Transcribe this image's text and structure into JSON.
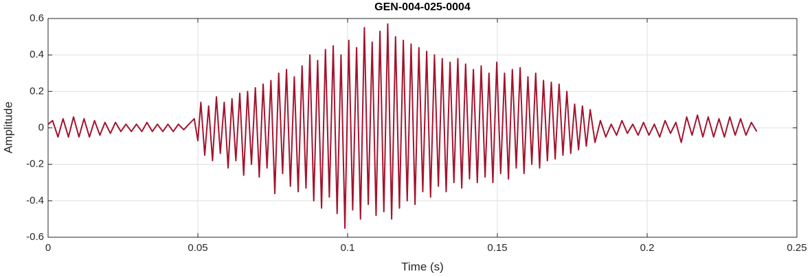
{
  "chart_data": {
    "type": "line",
    "title": "GEN-004-025-0004",
    "x_label": "Time (s)",
    "y_label": "Amplitude",
    "color": "#a2142f",
    "grid": true,
    "xlim": [
      0,
      0.25
    ],
    "ylim": [
      -0.6,
      0.6
    ],
    "xticks": [
      0,
      0.05,
      0.1,
      0.15,
      0.2,
      0.25
    ],
    "yticks": [
      -0.6,
      -0.4,
      -0.2,
      0,
      0.2,
      0.4,
      0.6
    ],
    "x": [
      0,
      0.0015,
      0.0033,
      0.005,
      0.0068,
      0.0085,
      0.0103,
      0.012,
      0.0138,
      0.0155,
      0.0173,
      0.019,
      0.0208,
      0.0225,
      0.0243,
      0.026,
      0.0278,
      0.0295,
      0.0313,
      0.033,
      0.0348,
      0.0365,
      0.0383,
      0.04,
      0.0418,
      0.0435,
      0.0453,
      0.047,
      0.0488,
      0.05,
      0.051,
      0.0523,
      0.0536,
      0.0549,
      0.0562,
      0.0575,
      0.0588,
      0.0601,
      0.0614,
      0.0627,
      0.064,
      0.0653,
      0.0666,
      0.0679,
      0.0692,
      0.0705,
      0.0718,
      0.0731,
      0.0744,
      0.0757,
      0.077,
      0.0783,
      0.0796,
      0.0809,
      0.0822,
      0.0835,
      0.0848,
      0.0861,
      0.0874,
      0.0887,
      0.09,
      0.0913,
      0.0926,
      0.0939,
      0.0952,
      0.0965,
      0.0978,
      0.0991,
      0.1004,
      0.1017,
      0.103,
      0.1043,
      0.1056,
      0.1069,
      0.1082,
      0.1095,
      0.1108,
      0.1121,
      0.1134,
      0.1147,
      0.116,
      0.1173,
      0.1186,
      0.1199,
      0.1212,
      0.1225,
      0.1238,
      0.1251,
      0.1264,
      0.1277,
      0.129,
      0.1303,
      0.1316,
      0.1329,
      0.1342,
      0.1355,
      0.1368,
      0.1381,
      0.1394,
      0.1407,
      0.142,
      0.1433,
      0.1446,
      0.1459,
      0.1472,
      0.1485,
      0.1498,
      0.1511,
      0.1524,
      0.1537,
      0.155,
      0.1563,
      0.1576,
      0.1589,
      0.1602,
      0.1615,
      0.1628,
      0.1641,
      0.1654,
      0.1667,
      0.168,
      0.1693,
      0.1706,
      0.1719,
      0.1732,
      0.1745,
      0.1758,
      0.1771,
      0.1784,
      0.1797,
      0.181,
      0.1826,
      0.1844,
      0.1862,
      0.188,
      0.1898,
      0.1916,
      0.1934,
      0.1952,
      0.197,
      0.1988,
      0.2006,
      0.2024,
      0.2042,
      0.206,
      0.2078,
      0.2096,
      0.2114,
      0.2132,
      0.215,
      0.2168,
      0.2186,
      0.2204,
      0.2222,
      0.224,
      0.2258,
      0.2276,
      0.2294,
      0.2312,
      0.233,
      0.2348,
      0.2366
    ],
    "values": [
      0.02,
      0.04,
      -0.05,
      0.05,
      -0.05,
      0.06,
      -0.05,
      0.05,
      -0.05,
      0.04,
      -0.04,
      0.03,
      -0.03,
      0.03,
      -0.02,
      0.02,
      -0.02,
      0.02,
      -0.02,
      0.03,
      -0.02,
      0.02,
      -0.02,
      0.02,
      -0.02,
      0.02,
      -0.01,
      0.02,
      0.05,
      -0.07,
      0.14,
      -0.15,
      0.12,
      -0.18,
      0.17,
      -0.14,
      0.14,
      -0.22,
      0.16,
      -0.18,
      0.19,
      -0.26,
      0.2,
      -0.2,
      0.22,
      -0.27,
      0.24,
      -0.22,
      0.26,
      -0.36,
      0.3,
      -0.25,
      0.32,
      -0.32,
      0.28,
      -0.35,
      0.34,
      -0.33,
      0.4,
      -0.4,
      0.37,
      -0.44,
      0.43,
      -0.38,
      0.45,
      -0.47,
      0.4,
      -0.55,
      0.48,
      -0.45,
      0.44,
      -0.5,
      0.55,
      -0.42,
      0.47,
      -0.48,
      0.53,
      -0.46,
      0.57,
      -0.5,
      0.5,
      -0.44,
      0.48,
      -0.4,
      0.46,
      -0.42,
      0.44,
      -0.35,
      0.42,
      -0.38,
      0.4,
      -0.32,
      0.38,
      -0.35,
      0.36,
      -0.3,
      0.38,
      -0.33,
      0.35,
      -0.28,
      0.32,
      -0.3,
      0.34,
      -0.27,
      0.3,
      -0.3,
      0.36,
      -0.25,
      0.3,
      -0.28,
      0.32,
      -0.22,
      0.33,
      -0.25,
      0.28,
      -0.2,
      0.3,
      -0.22,
      0.26,
      -0.18,
      0.25,
      -0.17,
      0.24,
      -0.15,
      0.2,
      -0.14,
      0.13,
      -0.12,
      0.12,
      -0.1,
      0.1,
      -0.08,
      0.04,
      -0.05,
      0.02,
      -0.04,
      0.04,
      -0.03,
      0.02,
      -0.04,
      0.03,
      -0.04,
      0.02,
      -0.05,
      0.04,
      -0.03,
      0.03,
      -0.08,
      0.06,
      -0.04,
      0.07,
      -0.05,
      0.06,
      -0.05,
      0.05,
      -0.05,
      0.06,
      -0.04,
      0.05,
      -0.04,
      0.03,
      -0.02
    ]
  }
}
